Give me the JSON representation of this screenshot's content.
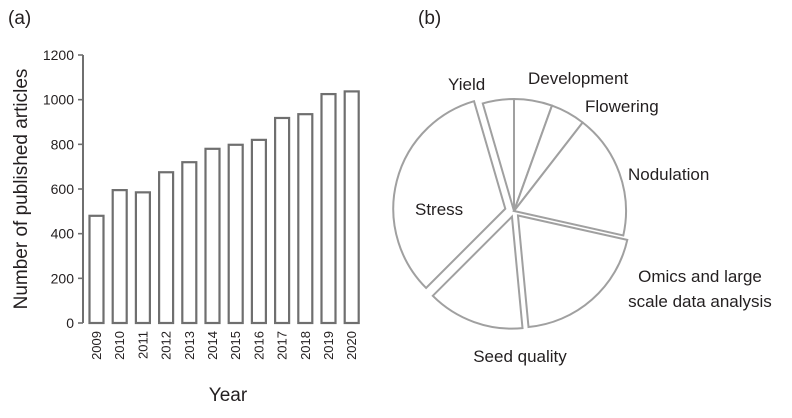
{
  "chart_data": [
    {
      "type": "bar",
      "panel_label": "(a)",
      "xlabel": "Year",
      "ylabel": "Number of published articles",
      "categories": [
        "2009",
        "2010",
        "2011",
        "2012",
        "2013",
        "2014",
        "2015",
        "2016",
        "2017",
        "2018",
        "2019",
        "2020"
      ],
      "values": [
        480,
        595,
        585,
        675,
        720,
        780,
        798,
        820,
        918,
        935,
        1025,
        1037
      ],
      "ylim": [
        0,
        1200
      ],
      "yticks": [
        "0",
        "200",
        "400",
        "600",
        "800",
        "1000",
        "1200"
      ],
      "grid": false,
      "bar_fill": "#ffffff",
      "bar_stroke": "#6f6f6f"
    },
    {
      "type": "pie",
      "panel_label": "(b)",
      "exploded": true,
      "slices": [
        {
          "label": "Development",
          "value": 5.5
        },
        {
          "label": "Flowering",
          "value": 5
        },
        {
          "label": "Nodulation",
          "value": 18
        },
        {
          "label": "Omics and large scale data analysis",
          "value": 20
        },
        {
          "label": "Seed quality",
          "value": 14
        },
        {
          "label": "Stress",
          "value": 33
        },
        {
          "label": "Yield",
          "value": 4.5
        }
      ],
      "slice_fill": "#ffffff",
      "slice_stroke": "#a0a0a0"
    }
  ]
}
